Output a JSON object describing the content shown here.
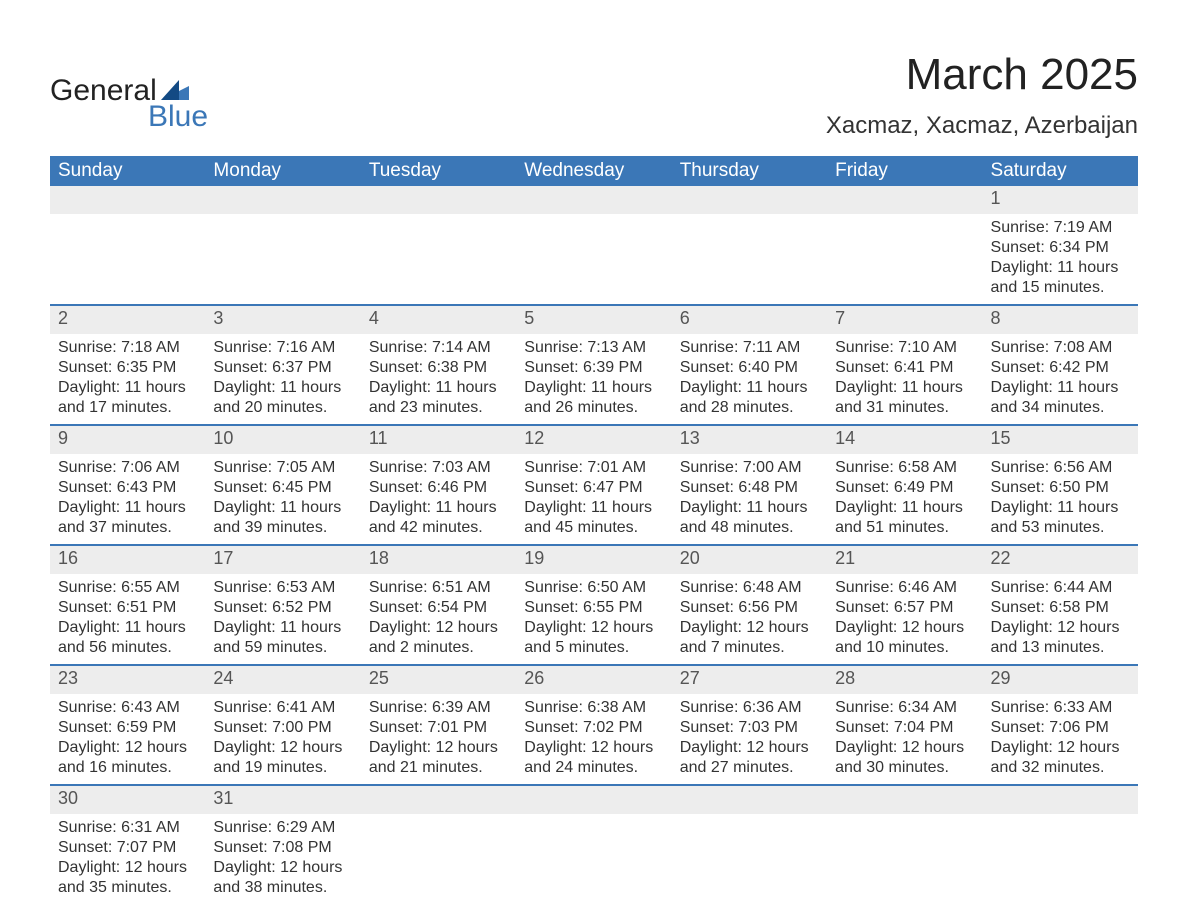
{
  "brand": {
    "line1": "General",
    "line2": "Blue",
    "accent_color": "#3b77b7"
  },
  "title": "March 2025",
  "location": "Xacmaz, Xacmaz, Azerbaijan",
  "colors": {
    "header_bg": "#3b77b7",
    "header_text": "#ffffff",
    "daynum_bg": "#ededed",
    "daynum_text": "#555555",
    "body_text": "#333333",
    "row_border": "#3b77b7",
    "page_bg": "#ffffff"
  },
  "typography": {
    "title_fontsize": 44,
    "location_fontsize": 24,
    "header_fontsize": 19,
    "daynum_fontsize": 18,
    "body_fontsize": 16
  },
  "weekdays": [
    "Sunday",
    "Monday",
    "Tuesday",
    "Wednesday",
    "Thursday",
    "Friday",
    "Saturday"
  ],
  "labels": {
    "sunrise": "Sunrise: ",
    "sunset": "Sunset: ",
    "daylight": "Daylight: "
  },
  "weeks": [
    [
      null,
      null,
      null,
      null,
      null,
      null,
      {
        "n": "1",
        "sr": "7:19 AM",
        "ss": "6:34 PM",
        "dl": "11 hours and 15 minutes."
      }
    ],
    [
      {
        "n": "2",
        "sr": "7:18 AM",
        "ss": "6:35 PM",
        "dl": "11 hours and 17 minutes."
      },
      {
        "n": "3",
        "sr": "7:16 AM",
        "ss": "6:37 PM",
        "dl": "11 hours and 20 minutes."
      },
      {
        "n": "4",
        "sr": "7:14 AM",
        "ss": "6:38 PM",
        "dl": "11 hours and 23 minutes."
      },
      {
        "n": "5",
        "sr": "7:13 AM",
        "ss": "6:39 PM",
        "dl": "11 hours and 26 minutes."
      },
      {
        "n": "6",
        "sr": "7:11 AM",
        "ss": "6:40 PM",
        "dl": "11 hours and 28 minutes."
      },
      {
        "n": "7",
        "sr": "7:10 AM",
        "ss": "6:41 PM",
        "dl": "11 hours and 31 minutes."
      },
      {
        "n": "8",
        "sr": "7:08 AM",
        "ss": "6:42 PM",
        "dl": "11 hours and 34 minutes."
      }
    ],
    [
      {
        "n": "9",
        "sr": "7:06 AM",
        "ss": "6:43 PM",
        "dl": "11 hours and 37 minutes."
      },
      {
        "n": "10",
        "sr": "7:05 AM",
        "ss": "6:45 PM",
        "dl": "11 hours and 39 minutes."
      },
      {
        "n": "11",
        "sr": "7:03 AM",
        "ss": "6:46 PM",
        "dl": "11 hours and 42 minutes."
      },
      {
        "n": "12",
        "sr": "7:01 AM",
        "ss": "6:47 PM",
        "dl": "11 hours and 45 minutes."
      },
      {
        "n": "13",
        "sr": "7:00 AM",
        "ss": "6:48 PM",
        "dl": "11 hours and 48 minutes."
      },
      {
        "n": "14",
        "sr": "6:58 AM",
        "ss": "6:49 PM",
        "dl": "11 hours and 51 minutes."
      },
      {
        "n": "15",
        "sr": "6:56 AM",
        "ss": "6:50 PM",
        "dl": "11 hours and 53 minutes."
      }
    ],
    [
      {
        "n": "16",
        "sr": "6:55 AM",
        "ss": "6:51 PM",
        "dl": "11 hours and 56 minutes."
      },
      {
        "n": "17",
        "sr": "6:53 AM",
        "ss": "6:52 PM",
        "dl": "11 hours and 59 minutes."
      },
      {
        "n": "18",
        "sr": "6:51 AM",
        "ss": "6:54 PM",
        "dl": "12 hours and 2 minutes."
      },
      {
        "n": "19",
        "sr": "6:50 AM",
        "ss": "6:55 PM",
        "dl": "12 hours and 5 minutes."
      },
      {
        "n": "20",
        "sr": "6:48 AM",
        "ss": "6:56 PM",
        "dl": "12 hours and 7 minutes."
      },
      {
        "n": "21",
        "sr": "6:46 AM",
        "ss": "6:57 PM",
        "dl": "12 hours and 10 minutes."
      },
      {
        "n": "22",
        "sr": "6:44 AM",
        "ss": "6:58 PM",
        "dl": "12 hours and 13 minutes."
      }
    ],
    [
      {
        "n": "23",
        "sr": "6:43 AM",
        "ss": "6:59 PM",
        "dl": "12 hours and 16 minutes."
      },
      {
        "n": "24",
        "sr": "6:41 AM",
        "ss": "7:00 PM",
        "dl": "12 hours and 19 minutes."
      },
      {
        "n": "25",
        "sr": "6:39 AM",
        "ss": "7:01 PM",
        "dl": "12 hours and 21 minutes."
      },
      {
        "n": "26",
        "sr": "6:38 AM",
        "ss": "7:02 PM",
        "dl": "12 hours and 24 minutes."
      },
      {
        "n": "27",
        "sr": "6:36 AM",
        "ss": "7:03 PM",
        "dl": "12 hours and 27 minutes."
      },
      {
        "n": "28",
        "sr": "6:34 AM",
        "ss": "7:04 PM",
        "dl": "12 hours and 30 minutes."
      },
      {
        "n": "29",
        "sr": "6:33 AM",
        "ss": "7:06 PM",
        "dl": "12 hours and 32 minutes."
      }
    ],
    [
      {
        "n": "30",
        "sr": "6:31 AM",
        "ss": "7:07 PM",
        "dl": "12 hours and 35 minutes."
      },
      {
        "n": "31",
        "sr": "6:29 AM",
        "ss": "7:08 PM",
        "dl": "12 hours and 38 minutes."
      },
      null,
      null,
      null,
      null,
      null
    ]
  ]
}
